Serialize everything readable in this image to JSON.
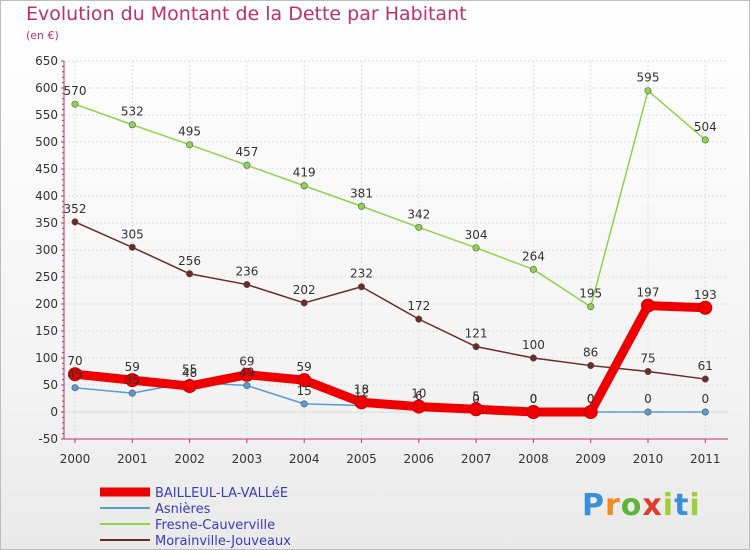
{
  "title": "Evolution du Montant de la Dette par Habitant",
  "subtitle": "(en €)",
  "logo": {
    "text": "Proxiti"
  },
  "chart_data": {
    "type": "line",
    "x": [
      "2000",
      "2001",
      "2002",
      "2003",
      "2004",
      "2005",
      "2006",
      "2007",
      "2008",
      "2009",
      "2010",
      "2011"
    ],
    "ylim": [
      -50,
      650
    ],
    "yticks": [
      -50,
      0,
      50,
      100,
      150,
      200,
      250,
      300,
      350,
      400,
      450,
      500,
      550,
      600,
      650
    ],
    "grid": true,
    "legend_position": "bottom-left",
    "series": [
      {
        "name": "Asnières",
        "color": "#5a9bd5",
        "values": [
          45,
          35,
          55,
          49,
          15,
          12,
          6,
          0,
          0,
          0,
          0,
          0
        ],
        "labels": [
          "45",
          "35",
          "55",
          "49",
          "15",
          "12",
          "6",
          "0",
          "0",
          "0",
          "0",
          "0"
        ]
      },
      {
        "name": "Fresne-Cauverville",
        "color": "#8fd44a",
        "values": [
          570,
          532,
          495,
          457,
          419,
          381,
          342,
          304,
          264,
          195,
          595,
          504
        ],
        "labels": [
          "570",
          "532",
          "495",
          "457",
          "419",
          "381",
          "342",
          "304",
          "264",
          "195",
          "595",
          "504"
        ]
      },
      {
        "name": "Morainville-Jouveaux",
        "color": "#6b2a2a",
        "values": [
          352,
          305,
          256,
          236,
          202,
          232,
          172,
          121,
          100,
          86,
          75,
          61
        ],
        "labels": [
          "352",
          "305",
          "256",
          "236",
          "202",
          "232",
          "172",
          "121",
          "100",
          "86",
          "75",
          "61"
        ]
      },
      {
        "name": "BAILLEUL-LA-VALLéE",
        "color": "#ee0000",
        "values": [
          70,
          59,
          48,
          69,
          59,
          18,
          10,
          5,
          0,
          0,
          197,
          193
        ],
        "labels": [
          "70",
          "59",
          "48",
          "69",
          "59",
          "18",
          "10",
          "5",
          "0",
          "0",
          "197",
          "193"
        ]
      }
    ],
    "legend": [
      "BAILLEUL-LA-VALLéE",
      "Asnières",
      "Fresne-Cauverville",
      "Morainville-Jouveaux"
    ]
  }
}
